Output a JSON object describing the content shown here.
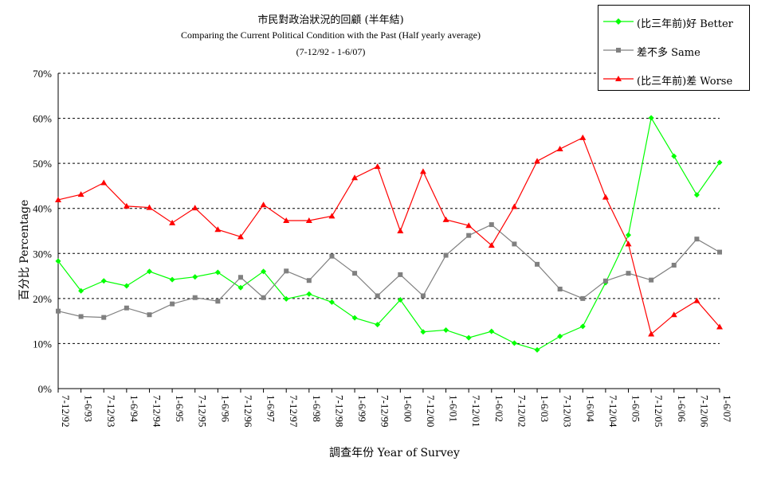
{
  "chart_data": {
    "type": "line",
    "title": "市民對政治狀況的回顧 (半年結)",
    "subtitle": "Comparing the Current Political Condition with the Past  (Half yearly average)",
    "period": "(7-12/92 - 1-6/07)",
    "xlabel": "調查年份 Year of Survey",
    "ylabel": "百分比 Percentage",
    "ylim": [
      0,
      70
    ],
    "yticks": [
      "0%",
      "10%",
      "20%",
      "30%",
      "40%",
      "50%",
      "60%",
      "70%"
    ],
    "grid": "horizontal dashed",
    "legend_position": "top-right",
    "categories": [
      "7-12/92",
      "1-6/93",
      "7-12/93",
      "1-6/94",
      "7-12/94",
      "1-6/95",
      "7-12/95",
      "1-6/96",
      "7-12/96",
      "1-6/97",
      "7-12/97",
      "1-6/98",
      "7-12/98",
      "1-6/99",
      "7-12/99",
      "1-6/00",
      "7-12/00",
      "1-6/01",
      "7-12/01",
      "1-6/02",
      "7-12/02",
      "1-6/03",
      "7-12/03",
      "1-6/04",
      "7-12/04",
      "1-6/05",
      "7-12/05",
      "1-6/06",
      "7-12/06",
      "1-6/07"
    ],
    "series": [
      {
        "name": "(比三年前)好 Better",
        "color": "#00ff00",
        "marker": "diamond",
        "values": [
          28.3,
          21.7,
          23.9,
          22.8,
          26.0,
          24.2,
          24.8,
          25.8,
          22.4,
          26.0,
          19.9,
          21.0,
          19.2,
          15.7,
          14.2,
          19.7,
          12.6,
          13.0,
          11.3,
          12.7,
          10.1,
          8.6,
          11.6,
          13.8,
          23.5,
          34.1,
          60.1,
          51.6,
          43.0,
          50.2
        ]
      },
      {
        "name": "差不多 Same",
        "color": "#808080",
        "marker": "square",
        "values": [
          17.2,
          16.0,
          15.8,
          17.9,
          16.4,
          18.8,
          20.2,
          19.4,
          24.7,
          20.2,
          26.1,
          24.0,
          29.4,
          25.6,
          20.6,
          25.3,
          20.6,
          29.6,
          34.0,
          36.4,
          32.1,
          27.6,
          22.1,
          20.0,
          23.9,
          25.6,
          24.1,
          27.4,
          33.2,
          30.3
        ]
      },
      {
        "name": "(比三年前)差 Worse",
        "color": "#ff0000",
        "marker": "triangle",
        "values": [
          41.9,
          43.1,
          45.7,
          40.5,
          40.2,
          36.8,
          40.1,
          35.3,
          33.7,
          40.8,
          37.3,
          37.3,
          38.3,
          46.8,
          49.3,
          35.0,
          48.2,
          37.5,
          36.2,
          31.8,
          40.4,
          50.5,
          53.2,
          55.7,
          42.5,
          32.1,
          12.1,
          16.4,
          19.5,
          13.7
        ]
      }
    ]
  }
}
